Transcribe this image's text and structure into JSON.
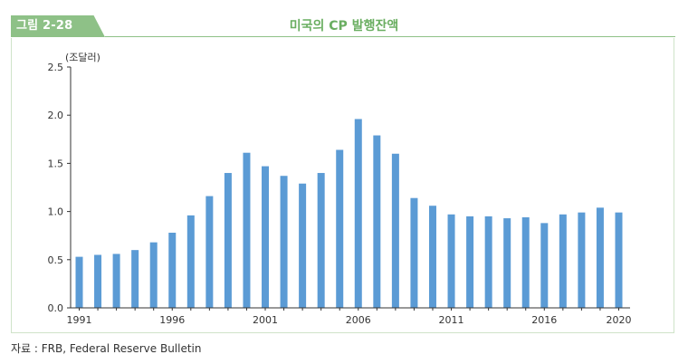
{
  "figure": {
    "label": "그림 2-28",
    "title": "미국의 CP 발행잔액",
    "source": "자료 : FRB, Federal Reserve Bulletin"
  },
  "colors": {
    "bar": "#5b9bd5",
    "accent": "#8ec187",
    "title": "#6aae61",
    "axis": "#333333"
  },
  "chart_data": {
    "type": "bar",
    "title": "미국의 CP 발행잔액",
    "unit_label": "(조달러)",
    "x": [
      1991,
      1992,
      1993,
      1994,
      1995,
      1996,
      1997,
      1998,
      1999,
      2000,
      2001,
      2002,
      2003,
      2004,
      2005,
      2006,
      2007,
      2008,
      2009,
      2010,
      2011,
      2012,
      2013,
      2014,
      2015,
      2016,
      2017,
      2018,
      2019,
      2020
    ],
    "values": [
      0.53,
      0.55,
      0.56,
      0.6,
      0.68,
      0.78,
      0.96,
      1.16,
      1.4,
      1.61,
      1.47,
      1.37,
      1.29,
      1.4,
      1.64,
      1.96,
      1.79,
      1.6,
      1.14,
      1.06,
      0.97,
      0.95,
      0.95,
      0.93,
      0.94,
      0.88,
      0.97,
      0.99,
      1.04,
      0.99
    ],
    "x_tick_labels": [
      "1991",
      "1996",
      "2001",
      "2006",
      "2011",
      "2016",
      "2020"
    ],
    "y_tick_labels": [
      "0.0",
      "0.5",
      "1.0",
      "1.5",
      "2.0",
      "2.5"
    ],
    "ylim": [
      0,
      2.5
    ],
    "grid": false,
    "legend": "none"
  }
}
